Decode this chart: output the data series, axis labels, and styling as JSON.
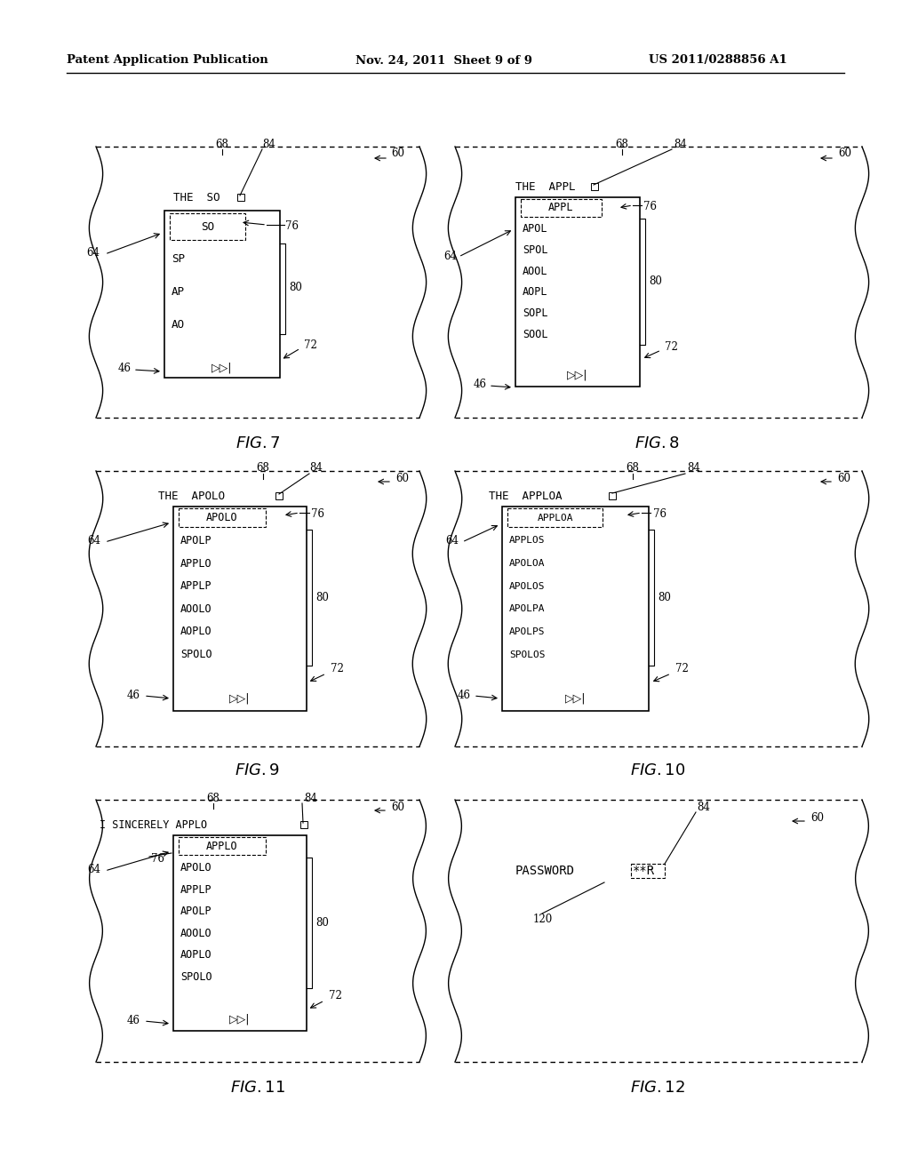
{
  "header_left": "Patent Application Publication",
  "header_mid": "Nov. 24, 2011  Sheet 9 of 9",
  "header_right": "US 2011/0288856 A1",
  "bg_color": "#ffffff"
}
